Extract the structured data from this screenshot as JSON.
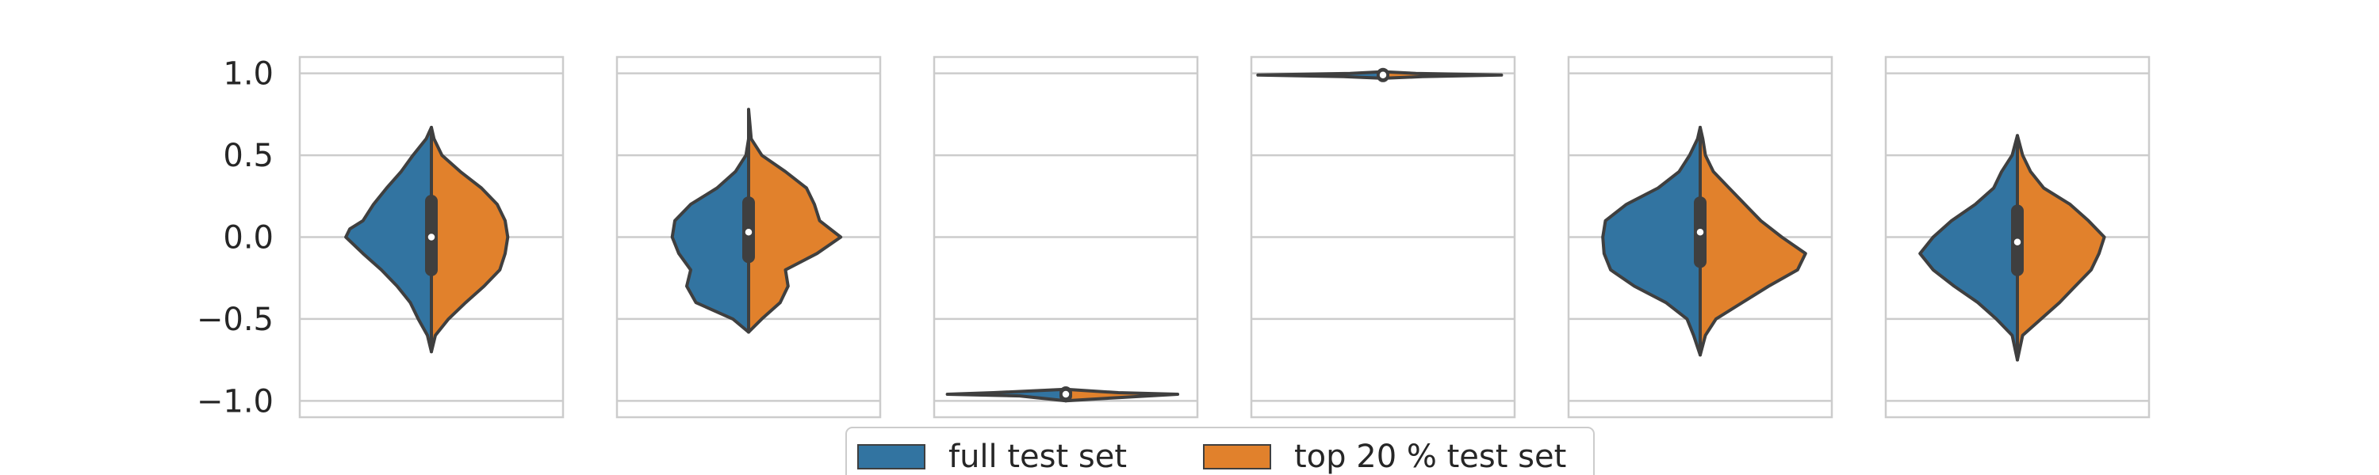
{
  "chart_data": {
    "type": "violin",
    "split": true,
    "ylim": [
      -1.1,
      1.1
    ],
    "yticks": [
      {
        "value": 1.0,
        "label": "1.0"
      },
      {
        "value": 0.5,
        "label": "0.5"
      },
      {
        "value": 0.0,
        "label": "0.0"
      },
      {
        "value": -0.5,
        "label": "−0.5"
      },
      {
        "value": -1.0,
        "label": "−1.0"
      }
    ],
    "grid": true,
    "legend_position": "bottom-center",
    "series": [
      {
        "name": "full test set",
        "color": "#3274a1"
      },
      {
        "name": "top 20 % test set",
        "color": "#e1812c"
      }
    ],
    "panels": [
      {
        "full": {
          "density": [
            [
              -0.7,
              0.0
            ],
            [
              -0.6,
              0.03
            ],
            [
              -0.5,
              0.1
            ],
            [
              -0.4,
              0.16
            ],
            [
              -0.3,
              0.26
            ],
            [
              -0.2,
              0.38
            ],
            [
              -0.1,
              0.52
            ],
            [
              0.0,
              0.65
            ],
            [
              0.05,
              0.62
            ],
            [
              0.1,
              0.52
            ],
            [
              0.2,
              0.44
            ],
            [
              0.3,
              0.34
            ],
            [
              0.4,
              0.23
            ],
            [
              0.5,
              0.14
            ],
            [
              0.6,
              0.04
            ],
            [
              0.67,
              0.0
            ]
          ]
        },
        "top20": {
          "density": [
            [
              -0.7,
              0.0
            ],
            [
              -0.6,
              0.03
            ],
            [
              -0.5,
              0.13
            ],
            [
              -0.4,
              0.26
            ],
            [
              -0.3,
              0.4
            ],
            [
              -0.2,
              0.52
            ],
            [
              -0.1,
              0.56
            ],
            [
              0.0,
              0.58
            ],
            [
              0.1,
              0.56
            ],
            [
              0.2,
              0.5
            ],
            [
              0.3,
              0.38
            ],
            [
              0.4,
              0.22
            ],
            [
              0.5,
              0.08
            ],
            [
              0.6,
              0.02
            ],
            [
              0.67,
              0.0
            ]
          ]
        },
        "median": 0.0,
        "q1": -0.2,
        "q3": 0.22
      },
      {
        "full": {
          "density": [
            [
              -0.58,
              0.0
            ],
            [
              -0.5,
              0.12
            ],
            [
              -0.4,
              0.4
            ],
            [
              -0.3,
              0.47
            ],
            [
              -0.2,
              0.44
            ],
            [
              -0.1,
              0.53
            ],
            [
              0.0,
              0.58
            ],
            [
              0.1,
              0.56
            ],
            [
              0.2,
              0.44
            ],
            [
              0.3,
              0.24
            ],
            [
              0.4,
              0.1
            ],
            [
              0.5,
              0.02
            ],
            [
              0.6,
              0.0
            ],
            [
              0.78,
              0.0
            ]
          ]
        },
        "top20": {
          "density": [
            [
              -0.58,
              0.0
            ],
            [
              -0.5,
              0.1
            ],
            [
              -0.4,
              0.24
            ],
            [
              -0.3,
              0.3
            ],
            [
              -0.2,
              0.28
            ],
            [
              -0.1,
              0.52
            ],
            [
              0.0,
              0.7
            ],
            [
              0.1,
              0.54
            ],
            [
              0.2,
              0.5
            ],
            [
              0.3,
              0.44
            ],
            [
              0.4,
              0.28
            ],
            [
              0.5,
              0.1
            ],
            [
              0.6,
              0.02
            ],
            [
              0.78,
              0.0
            ]
          ]
        },
        "median": 0.03,
        "q1": -0.12,
        "q3": 0.21
      },
      {
        "full": {
          "density": [
            [
              -1.0,
              0.0
            ],
            [
              -0.97,
              0.35
            ],
            [
              -0.96,
              0.9
            ],
            [
              -0.95,
              0.55
            ],
            [
              -0.93,
              0.0
            ]
          ]
        },
        "top20": {
          "density": [
            [
              -1.0,
              0.0
            ],
            [
              -0.98,
              0.4
            ],
            [
              -0.96,
              0.85
            ],
            [
              -0.95,
              0.4
            ],
            [
              -0.93,
              0.0
            ]
          ]
        },
        "median": -0.96,
        "q1": -0.97,
        "q3": -0.95
      },
      {
        "full": {
          "density": [
            [
              0.97,
              0.0
            ],
            [
              0.98,
              0.3
            ],
            [
              0.99,
              0.95
            ],
            [
              1.0,
              0.25
            ],
            [
              1.01,
              0.0
            ]
          ]
        },
        "top20": {
          "density": [
            [
              0.97,
              0.0
            ],
            [
              0.98,
              0.3
            ],
            [
              0.99,
              0.9
            ],
            [
              1.0,
              0.25
            ],
            [
              1.01,
              0.0
            ]
          ]
        },
        "median": 0.99,
        "q1": 0.985,
        "q3": 0.995
      },
      {
        "full": {
          "density": [
            [
              -0.72,
              0.0
            ],
            [
              -0.6,
              0.05
            ],
            [
              -0.5,
              0.1
            ],
            [
              -0.4,
              0.26
            ],
            [
              -0.3,
              0.5
            ],
            [
              -0.2,
              0.68
            ],
            [
              -0.1,
              0.73
            ],
            [
              0.0,
              0.74
            ],
            [
              0.1,
              0.72
            ],
            [
              0.2,
              0.56
            ],
            [
              0.3,
              0.32
            ],
            [
              0.4,
              0.16
            ],
            [
              0.5,
              0.08
            ],
            [
              0.6,
              0.02
            ],
            [
              0.67,
              0.0
            ]
          ]
        },
        "top20": {
          "density": [
            [
              -0.72,
              0.0
            ],
            [
              -0.6,
              0.04
            ],
            [
              -0.5,
              0.12
            ],
            [
              -0.4,
              0.32
            ],
            [
              -0.3,
              0.52
            ],
            [
              -0.2,
              0.74
            ],
            [
              -0.1,
              0.8
            ],
            [
              0.0,
              0.62
            ],
            [
              0.1,
              0.46
            ],
            [
              0.2,
              0.34
            ],
            [
              0.3,
              0.22
            ],
            [
              0.4,
              0.1
            ],
            [
              0.5,
              0.04
            ],
            [
              0.6,
              0.02
            ],
            [
              0.67,
              0.0
            ]
          ]
        },
        "median": 0.03,
        "q1": -0.15,
        "q3": 0.21
      },
      {
        "full": {
          "density": [
            [
              -0.75,
              0.0
            ],
            [
              -0.6,
              0.04
            ],
            [
              -0.5,
              0.16
            ],
            [
              -0.4,
              0.3
            ],
            [
              -0.3,
              0.48
            ],
            [
              -0.2,
              0.64
            ],
            [
              -0.1,
              0.74
            ],
            [
              0.0,
              0.64
            ],
            [
              0.1,
              0.5
            ],
            [
              0.2,
              0.32
            ],
            [
              0.3,
              0.18
            ],
            [
              0.4,
              0.12
            ],
            [
              0.5,
              0.04
            ],
            [
              0.62,
              0.0
            ]
          ]
        },
        "top20": {
          "density": [
            [
              -0.75,
              0.0
            ],
            [
              -0.6,
              0.04
            ],
            [
              -0.5,
              0.18
            ],
            [
              -0.4,
              0.32
            ],
            [
              -0.3,
              0.44
            ],
            [
              -0.2,
              0.56
            ],
            [
              -0.1,
              0.62
            ],
            [
              0.0,
              0.66
            ],
            [
              0.1,
              0.54
            ],
            [
              0.2,
              0.4
            ],
            [
              0.3,
              0.2
            ],
            [
              0.4,
              0.1
            ],
            [
              0.5,
              0.04
            ],
            [
              0.62,
              0.0
            ]
          ]
        },
        "median": -0.03,
        "q1": -0.2,
        "q3": 0.16
      }
    ]
  }
}
